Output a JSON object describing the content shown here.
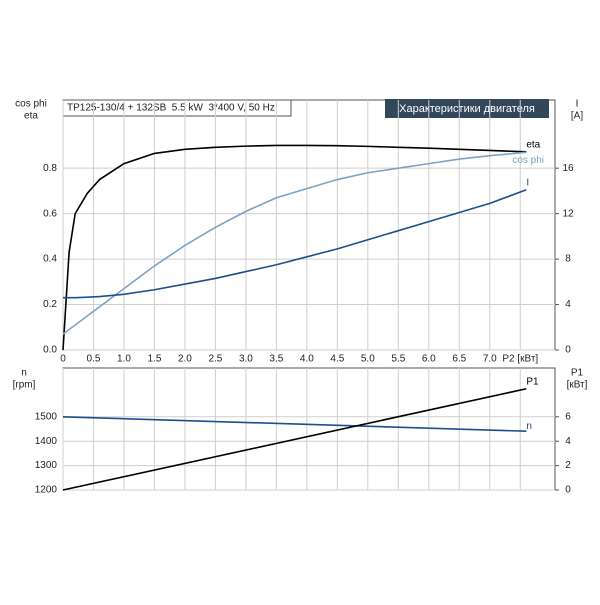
{
  "chart_data": [
    {
      "type": "line",
      "title": "TP125-130/4 + 132SB  5.5 kW  3*400 V, 50 Hz",
      "badge": "Характеристики двигателя",
      "y_label_lines": [
        "cos phi",
        "eta"
      ],
      "y2_label_lines": [
        "I",
        "[A]"
      ],
      "x": [
        0,
        0.1,
        0.2,
        0.4,
        0.6,
        1,
        1.5,
        2,
        2.5,
        3,
        3.5,
        4,
        4.5,
        5,
        5.5,
        6,
        6.5,
        7,
        7.6
      ],
      "xlim": [
        0,
        8.07
      ],
      "xticks": [
        0,
        0.5,
        {
          "value": 1,
          "label": "1.0"
        },
        1.5,
        {
          "value": 2,
          "label": "2.0"
        },
        2.5,
        {
          "value": 3,
          "label": "3.0"
        },
        3.5,
        {
          "value": 4,
          "label": "4.0"
        },
        4.5,
        {
          "value": 5,
          "label": "5.0"
        },
        5.5,
        {
          "value": 6,
          "label": "6.0"
        },
        6.5,
        {
          "value": 7,
          "label": "7.0"
        },
        {
          "value": 7.5,
          "label": "P2 [кВт]"
        }
      ],
      "ylim": [
        0,
        1.1
      ],
      "yticks": [
        {
          "value": 0,
          "label": "0.0"
        },
        0.2,
        0.4,
        0.6,
        0.8
      ],
      "y2lim": [
        0,
        22
      ],
      "y2ticks": [
        0,
        4,
        8,
        12,
        16
      ],
      "grid": true,
      "series": [
        {
          "name": "eta",
          "color": "#000000",
          "values": [
            0,
            0.43,
            0.6,
            0.69,
            0.75,
            0.82,
            0.865,
            0.883,
            0.892,
            0.897,
            0.9,
            0.9,
            0.899,
            0.896,
            0.892,
            0.888,
            0.883,
            0.878,
            0.872
          ]
        },
        {
          "name": "cos phi",
          "color": "#7ba3c8",
          "values": [
            0.07,
            0.09,
            0.11,
            0.15,
            0.19,
            0.27,
            0.37,
            0.46,
            0.54,
            0.61,
            0.67,
            0.71,
            0.75,
            0.78,
            0.8,
            0.82,
            0.84,
            0.855,
            0.87
          ]
        },
        {
          "name": "I",
          "color": "#1f4e8c",
          "axis": "y2",
          "values": [
            4.6,
            4.6,
            4.6,
            4.65,
            4.7,
            4.9,
            5.3,
            5.8,
            6.3,
            6.9,
            7.5,
            8.2,
            8.9,
            9.7,
            10.5,
            11.3,
            12.1,
            12.9,
            14.1
          ]
        }
      ]
    },
    {
      "type": "line",
      "y_label_lines": [
        "n",
        "[rpm]"
      ],
      "y2_label_lines": [
        "P1",
        "[кВт]"
      ],
      "x": [
        0,
        7.6
      ],
      "xlim": [
        0,
        8.07
      ],
      "ylim": [
        1200,
        1700
      ],
      "yticks": [
        1200,
        1300,
        1400,
        1500
      ],
      "y2lim": [
        0,
        10
      ],
      "y2ticks": [
        0,
        2,
        4,
        6
      ],
      "grid": true,
      "series": [
        {
          "name": "n",
          "color": "#1f4e8c",
          "values": [
            1500,
            1441
          ]
        },
        {
          "name": "P1",
          "color": "#000000",
          "axis": "y2",
          "values": [
            0,
            8.3
          ]
        }
      ]
    }
  ]
}
